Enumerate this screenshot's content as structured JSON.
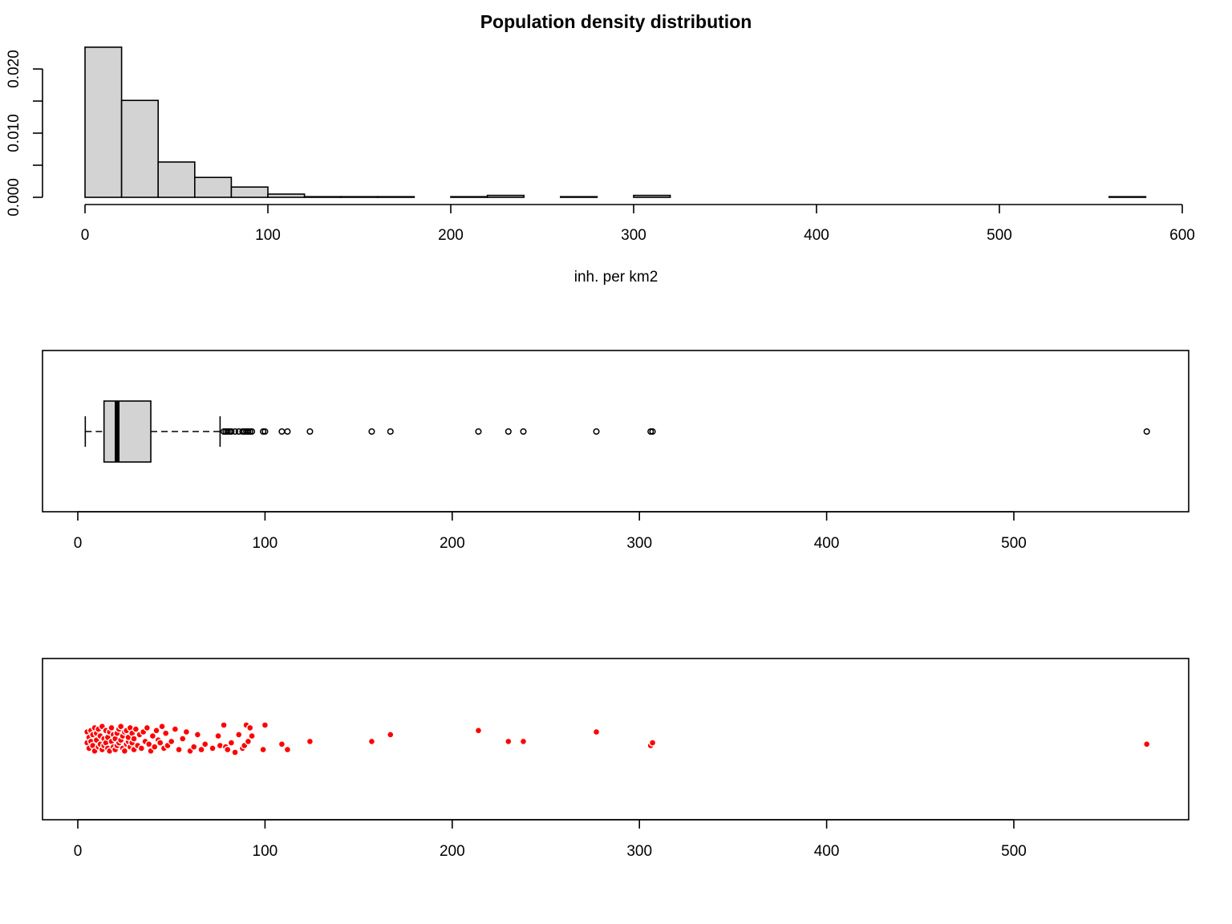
{
  "colors": {
    "bar_fill": "#d3d3d3",
    "stroke": "#000000",
    "strip_point": "#ff0000"
  },
  "chart_data": [
    {
      "type": "histogram",
      "title": "Population density distribution",
      "xlabel": "inh. per km2",
      "ylabel": "",
      "xlim": [
        0,
        600
      ],
      "ylim": [
        0,
        0.025
      ],
      "xticks": [
        "0",
        "100",
        "200",
        "300",
        "400",
        "500",
        "600"
      ],
      "yticks": [
        "0.000",
        "0.010",
        "0.020"
      ],
      "bin_width": 20,
      "bins": [
        {
          "x0": 0,
          "x1": 20,
          "density": 0.0234
        },
        {
          "x0": 20,
          "x1": 40,
          "density": 0.0151
        },
        {
          "x0": 40,
          "x1": 60,
          "density": 0.0055
        },
        {
          "x0": 60,
          "x1": 80,
          "density": 0.0031
        },
        {
          "x0": 80,
          "x1": 100,
          "density": 0.0016
        },
        {
          "x0": 100,
          "x1": 120,
          "density": 0.0005
        },
        {
          "x0": 120,
          "x1": 140,
          "density": 0.0001
        },
        {
          "x0": 140,
          "x1": 160,
          "density": 0.0001
        },
        {
          "x0": 160,
          "x1": 180,
          "density": 0.0001
        },
        {
          "x0": 180,
          "x1": 200,
          "density": 0
        },
        {
          "x0": 200,
          "x1": 220,
          "density": 0.0001
        },
        {
          "x0": 220,
          "x1": 240,
          "density": 0.0003
        },
        {
          "x0": 240,
          "x1": 260,
          "density": 0
        },
        {
          "x0": 260,
          "x1": 280,
          "density": 0.0001
        },
        {
          "x0": 280,
          "x1": 300,
          "density": 0
        },
        {
          "x0": 300,
          "x1": 320,
          "density": 0.0003
        },
        {
          "x0": 320,
          "x1": 340,
          "density": 0
        },
        {
          "x0": 340,
          "x1": 360,
          "density": 0
        },
        {
          "x0": 360,
          "x1": 380,
          "density": 0
        },
        {
          "x0": 380,
          "x1": 400,
          "density": 0
        },
        {
          "x0": 400,
          "x1": 420,
          "density": 0
        },
        {
          "x0": 420,
          "x1": 440,
          "density": 0
        },
        {
          "x0": 440,
          "x1": 460,
          "density": 0
        },
        {
          "x0": 460,
          "x1": 480,
          "density": 0
        },
        {
          "x0": 480,
          "x1": 500,
          "density": 0
        },
        {
          "x0": 500,
          "x1": 520,
          "density": 0
        },
        {
          "x0": 520,
          "x1": 540,
          "density": 0
        },
        {
          "x0": 540,
          "x1": 560,
          "density": 0
        },
        {
          "x0": 560,
          "x1": 580,
          "density": 0.0001
        }
      ]
    },
    {
      "type": "boxplot",
      "orientation": "horizontal",
      "xlim": [
        0,
        600
      ],
      "xticks": [
        "0",
        "100",
        "200",
        "300",
        "400",
        "500"
      ],
      "min": 4,
      "q1": 14,
      "median": 21,
      "q3": 39,
      "whisker_high": 76,
      "outliers": [
        78,
        79,
        80,
        81,
        82,
        84,
        86,
        88,
        89,
        90,
        91,
        92,
        93,
        99,
        100,
        109,
        112,
        124,
        157,
        167,
        214,
        230,
        238,
        277,
        306,
        307,
        571
      ]
    },
    {
      "type": "scatter",
      "subtype": "stripchart-jitter",
      "xlim": [
        0,
        600
      ],
      "xticks": [
        "0",
        "100",
        "200",
        "300",
        "400",
        "500"
      ],
      "x": [
        5,
        5,
        6,
        6,
        7,
        7,
        8,
        8,
        9,
        9,
        10,
        10,
        11,
        11,
        12,
        12,
        13,
        13,
        14,
        14,
        15,
        15,
        16,
        16,
        17,
        17,
        18,
        18,
        19,
        19,
        20,
        20,
        21,
        21,
        22,
        22,
        23,
        23,
        24,
        24,
        25,
        25,
        26,
        26,
        27,
        27,
        28,
        28,
        29,
        29,
        30,
        30,
        31,
        32,
        33,
        34,
        35,
        36,
        37,
        38,
        39,
        40,
        41,
        42,
        43,
        44,
        45,
        46,
        47,
        48,
        50,
        52,
        54,
        56,
        58,
        60,
        62,
        64,
        66,
        68,
        72,
        75,
        76,
        78,
        79,
        80,
        82,
        84,
        86,
        88,
        89,
        90,
        91,
        92,
        93,
        99,
        100,
        109,
        112,
        124,
        157,
        167,
        214,
        230,
        238,
        277,
        306,
        307,
        571
      ],
      "y": [
        0.3,
        -0.5,
        0.7,
        -0.1,
        -0.6,
        0.2,
        0.5,
        -0.3,
        0.9,
        -0.8,
        0.1,
        -0.4,
        0.6,
        -0.7,
        0.4,
        -0.2,
        0.8,
        -0.9,
        0.0,
        0.5,
        -0.6,
        0.3,
        0.7,
        -0.1,
        -0.5,
        0.9,
        0.2,
        -0.8,
        0.6,
        -0.3,
        0.0,
        0.8,
        -0.4,
        0.5,
        -0.7,
        0.3,
        0.1,
        -0.9,
        0.7,
        -0.2,
        0.9,
        -0.5,
        0.4,
        -0.6,
        0.2,
        -0.1,
        0.6,
        -0.8,
        0.3,
        -0.4,
        0.8,
        0.0,
        -0.7,
        0.5,
        -0.3,
        0.7,
        -0.5,
        0.2,
        -0.8,
        0.4,
        0.9,
        -0.2,
        0.6,
        -0.6,
        0.1,
        0.3,
        -0.9,
        0.7,
        -0.4,
        0.5,
        0.2,
        -0.7,
        0.8,
        0.0,
        -0.5,
        0.9,
        0.6,
        -0.3,
        0.8,
        0.4,
        0.7,
        -0.2,
        0.5,
        -1.0,
        0.6,
        0.8,
        0.3,
        1.0,
        -0.3,
        0.7,
        0.5,
        -1.0,
        0.2,
        -0.8,
        -0.2,
        0.8,
        -1.0,
        0.4,
        0.8,
        0.2,
        0.2,
        -0.3,
        -0.6,
        0.2,
        0.2,
        -0.5,
        0.5,
        0.3,
        0.4
      ]
    }
  ]
}
